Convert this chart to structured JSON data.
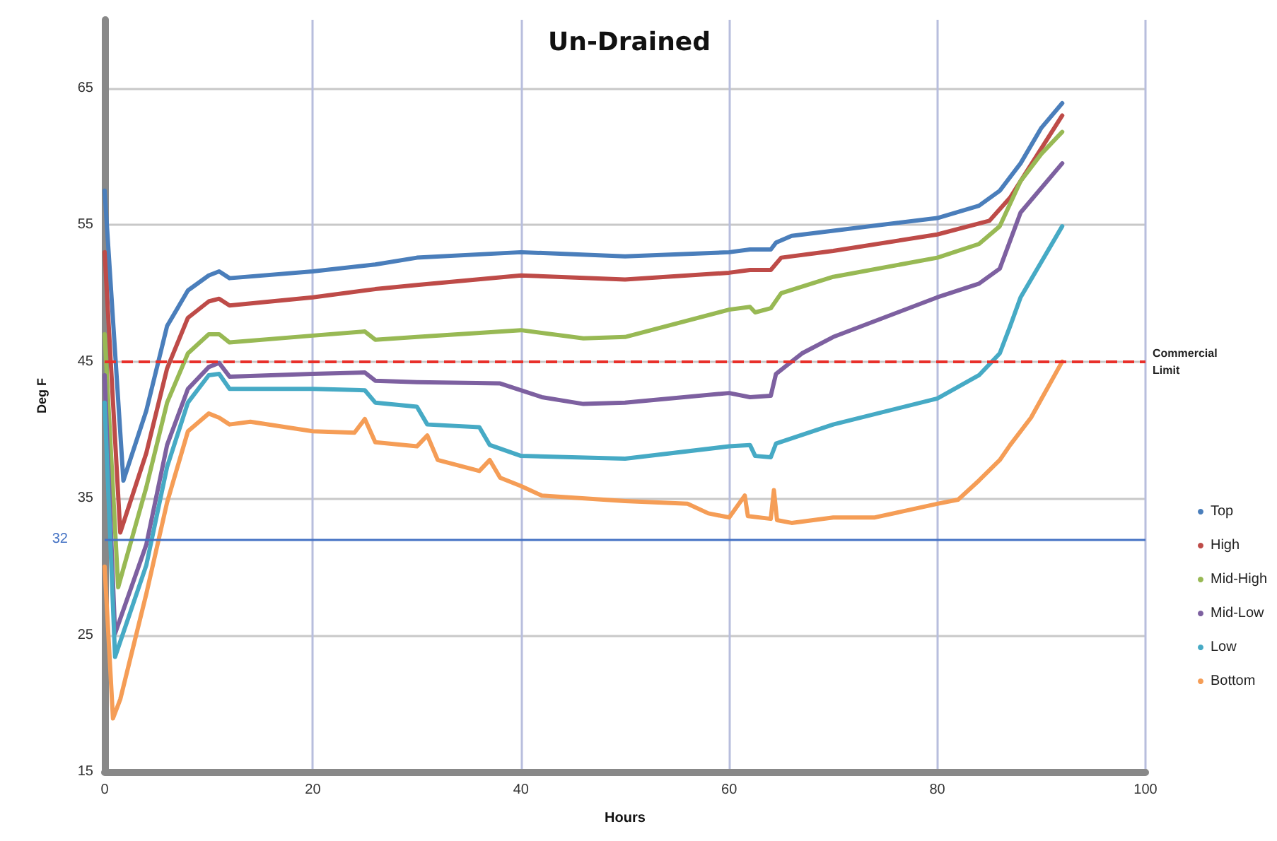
{
  "chart_data": {
    "type": "line",
    "title": "Un-Drained",
    "xlabel": "Hours",
    "ylabel": "Deg F",
    "xlim": [
      0,
      100
    ],
    "ylim": [
      15,
      70
    ],
    "xticks": [
      0,
      20,
      40,
      60,
      80,
      100
    ],
    "yticks": [
      15,
      25,
      35,
      45,
      55,
      65
    ],
    "grid": true,
    "legend": "right",
    "marker": "none",
    "ref_lines": [
      {
        "axis": "y",
        "value": 45,
        "label": "Commercial Limit",
        "color": "#e8302a",
        "line_style": "dashed"
      },
      {
        "axis": "y",
        "value": 32,
        "label": "32",
        "color": "#4472c4",
        "line_style": "solid"
      }
    ],
    "series": [
      {
        "name": "Top",
        "color": "#4a7ebb",
        "x": [
          0,
          1.8,
          4,
          6,
          8,
          10,
          11,
          12,
          20,
          26,
          30,
          40,
          50,
          60,
          62,
          64,
          64.5,
          66,
          80,
          84,
          86,
          88,
          90,
          92
        ],
        "values": [
          57.5,
          36.3,
          41.4,
          47.6,
          50.2,
          51.3,
          51.6,
          51.1,
          51.6,
          52.1,
          52.6,
          53,
          52.7,
          53,
          53.2,
          53.2,
          53.7,
          54.2,
          55.5,
          56.4,
          57.5,
          59.5,
          62.1,
          63.9
        ]
      },
      {
        "name": "High",
        "color": "#be4b48",
        "x": [
          0,
          1.5,
          4,
          6,
          8,
          10,
          11,
          12,
          20,
          26,
          30,
          40,
          50,
          60,
          62,
          64,
          65,
          70,
          80,
          85,
          87,
          90,
          92
        ],
        "values": [
          53,
          32.5,
          38.3,
          44.5,
          48.2,
          49.4,
          49.6,
          49.1,
          49.7,
          50.3,
          50.6,
          51.3,
          51,
          51.5,
          51.7,
          51.7,
          52.6,
          53.1,
          54.3,
          55.3,
          57,
          60.6,
          63
        ]
      },
      {
        "name": "Mid-High",
        "color": "#98b954",
        "x": [
          0,
          1.3,
          4,
          6,
          8,
          10,
          11,
          12,
          20,
          25,
          26,
          30,
          40,
          46,
          50,
          60,
          62,
          62.5,
          64,
          65,
          70,
          80,
          84,
          86,
          88,
          90,
          92
        ],
        "values": [
          47,
          28.5,
          35.8,
          42,
          45.6,
          47,
          47,
          46.4,
          46.9,
          47.2,
          46.6,
          46.8,
          47.3,
          46.7,
          46.8,
          48.8,
          49,
          48.6,
          48.9,
          50,
          51.2,
          52.6,
          53.6,
          54.9,
          58.2,
          60.2,
          61.8
        ]
      },
      {
        "name": "Mid-Low",
        "color": "#7d60a0",
        "x": [
          0,
          1,
          4,
          6,
          8,
          10,
          11,
          12,
          20,
          25,
          26,
          30,
          38,
          42,
          46,
          50,
          60,
          62,
          64,
          64.5,
          67,
          70,
          80,
          84,
          86,
          88,
          92
        ],
        "values": [
          44,
          25.1,
          31.6,
          38.9,
          43,
          44.6,
          44.9,
          43.9,
          44.1,
          44.2,
          43.6,
          43.5,
          43.4,
          42.4,
          41.9,
          42,
          42.7,
          42.4,
          42.5,
          44.1,
          45.6,
          46.8,
          49.7,
          50.7,
          51.8,
          55.9,
          59.5
        ]
      },
      {
        "name": "Low",
        "color": "#46aac5",
        "x": [
          0,
          1,
          4,
          6,
          8,
          10,
          11,
          12,
          20,
          25,
          26,
          30,
          31,
          36,
          37,
          40,
          50,
          60,
          62,
          62.5,
          64,
          64.5,
          70,
          80,
          84,
          86,
          87,
          88,
          90,
          92
        ],
        "values": [
          42,
          23.4,
          30.1,
          37.3,
          42,
          44,
          44.1,
          43,
          43,
          42.9,
          42,
          41.7,
          40.4,
          40.2,
          38.9,
          38.1,
          37.9,
          38.8,
          38.9,
          38.1,
          38,
          39,
          40.4,
          42.3,
          44,
          45.6,
          47.6,
          49.7,
          52.3,
          54.9
        ]
      },
      {
        "name": "Bottom",
        "color": "#f59d56",
        "x": [
          0,
          0.8,
          1.5,
          4,
          6,
          8,
          10,
          11,
          12,
          14,
          20,
          24,
          25,
          26,
          30,
          31,
          32,
          36,
          37,
          38,
          40,
          42,
          50,
          56,
          58,
          60,
          61.5,
          61.8,
          64,
          64.3,
          64.6,
          66,
          70,
          74,
          80,
          82,
          84,
          86,
          87,
          89,
          92
        ],
        "values": [
          30,
          18.9,
          20.3,
          28,
          34.7,
          39.9,
          41.2,
          40.9,
          40.4,
          40.6,
          39.9,
          39.8,
          40.8,
          39.1,
          38.8,
          39.6,
          37.8,
          37,
          37.8,
          36.5,
          35.9,
          35.2,
          34.8,
          34.6,
          33.9,
          33.6,
          35.2,
          33.7,
          33.5,
          35.6,
          33.4,
          33.2,
          33.6,
          33.6,
          34.6,
          34.9,
          36.3,
          37.8,
          38.9,
          40.9,
          45
        ]
      }
    ]
  }
}
